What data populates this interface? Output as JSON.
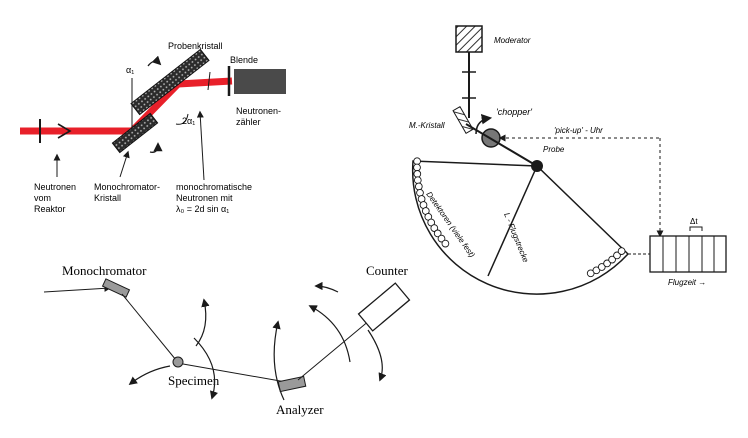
{
  "colors": {
    "beam": "#e8202a",
    "ink": "#1a1a1a",
    "crystal": "#333333",
    "counter_box": "#4a4a4a"
  },
  "top_left": {
    "probe_crystal": "Probenkristall",
    "aperture": "Blende",
    "alpha1": "α₁",
    "two_alpha1": "2α₁",
    "counter_line1": "Neutronen-",
    "counter_line2": "zähler",
    "source_line1": "Neutronen",
    "source_line2": "vom",
    "source_line3": "Reaktor",
    "mono_line1": "Monochromator-",
    "mono_line2": "Kristall",
    "mono_neutrons_line1": "monochromatische",
    "mono_neutrons_line2": "Neutronen mit",
    "mono_neutrons_line3": "λ₀ = 2d  sin α₁"
  },
  "top_right": {
    "moderator": "Moderator",
    "chopper": "'chopper'",
    "pickup": "'pick-up' - Uhr",
    "mono_crystal": "M.-Kristall",
    "sample": "Probe",
    "flight_path": "L - Flugstrecke",
    "detectors": "Detektoren  (viele fest)",
    "delta_t": "Δt",
    "flight_time": "Flugzeit →"
  },
  "bottom": {
    "monochromator": "Monochromator",
    "specimen": "Specimen",
    "analyzer": "Analyzer",
    "counter": "Counter"
  }
}
